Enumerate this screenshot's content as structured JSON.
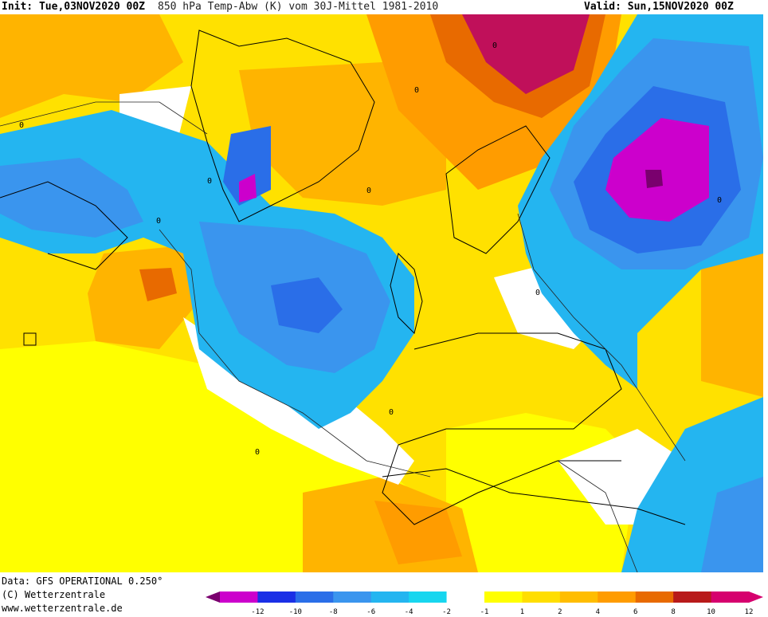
{
  "header": {
    "init": "Init: Tue,03NOV2020 00Z",
    "title": "850 hPa Temp-Abw (K) vom 30J-Mittel 1981-2010",
    "valid": "Valid: Sun,15NOV2020 00Z"
  },
  "footer": {
    "data": "Data: GFS OPERATIONAL 0.250°",
    "copyright": "(C) Wetterzentrale",
    "url": "www.wetterzentrale.de"
  },
  "map": {
    "contour_labels": [
      "0",
      "0",
      "0",
      "0",
      "0",
      "0",
      "0",
      "0",
      "0",
      "0"
    ]
  },
  "legend": {
    "ticks": [
      "-12",
      "-10",
      "-8",
      "-6",
      "-4",
      "-2",
      "-1",
      "1",
      "2",
      "4",
      "6",
      "8",
      "10",
      "12"
    ],
    "colors": [
      "#cc00cc",
      "#1a2fe6",
      "#2a6ee8",
      "#3a95ee",
      "#24b5f0",
      "#17d6ef",
      "#ffffff",
      "#ffff00",
      "#ffde00",
      "#ffbd00",
      "#ff9c00",
      "#e86a00",
      "#b81a1a",
      "#d6006e"
    ]
  },
  "colors": {
    "ocean_cold_deep": "#7a006e",
    "ocean_warm": "#ffff00"
  }
}
